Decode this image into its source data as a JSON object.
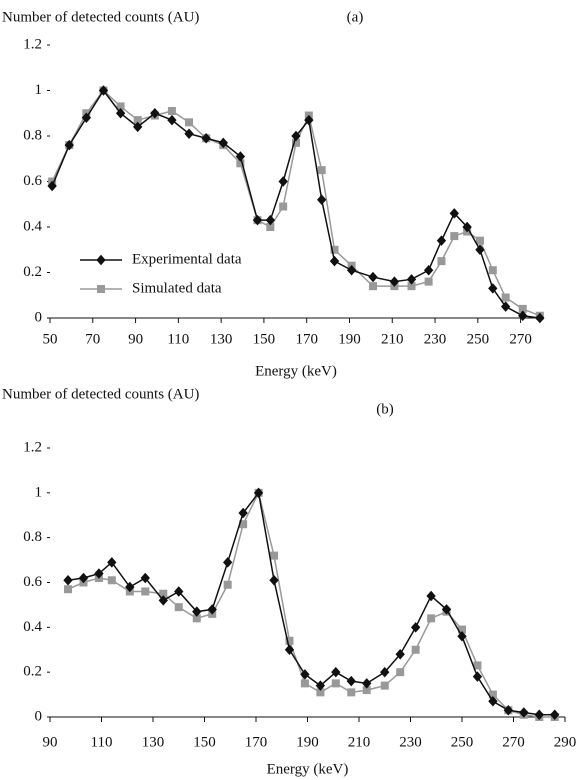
{
  "chart_data": [
    {
      "type": "line",
      "title": "(a)",
      "ylabel": "Number of detected counts (AU)",
      "xlabel": "Energy (keV)",
      "x": [
        51,
        59,
        67,
        75,
        83,
        91,
        99,
        107,
        115,
        123,
        131,
        139,
        147,
        153,
        159,
        165,
        171,
        177,
        183,
        191,
        201,
        211,
        219,
        227,
        233,
        239,
        245,
        251,
        257,
        263,
        271,
        279
      ],
      "series": [
        {
          "name": "Experimental data",
          "color": "#111111",
          "marker": "diamond",
          "values": [
            0.58,
            0.76,
            0.88,
            1.0,
            0.9,
            0.84,
            0.9,
            0.87,
            0.81,
            0.79,
            0.77,
            0.71,
            0.43,
            0.43,
            0.6,
            0.8,
            0.87,
            0.52,
            0.25,
            0.21,
            0.18,
            0.16,
            0.17,
            0.21,
            0.34,
            0.46,
            0.4,
            0.3,
            0.13,
            0.05,
            0.01,
            0.0
          ]
        },
        {
          "name": "Simulated data",
          "color": "#999999",
          "marker": "square",
          "values": [
            0.6,
            0.76,
            0.9,
            1.0,
            0.93,
            0.87,
            0.89,
            0.91,
            0.86,
            0.79,
            0.76,
            0.68,
            0.43,
            0.4,
            0.49,
            0.77,
            0.89,
            0.65,
            0.3,
            0.23,
            0.14,
            0.14,
            0.14,
            0.16,
            0.25,
            0.36,
            0.38,
            0.34,
            0.21,
            0.09,
            0.04,
            0.01
          ]
        }
      ],
      "xlim": [
        50,
        280
      ],
      "xticks": [
        50,
        70,
        90,
        110,
        130,
        150,
        170,
        190,
        210,
        230,
        250,
        270
      ],
      "ylim": [
        0,
        1.2
      ],
      "yticks": [
        0,
        0.2,
        0.4,
        0.6,
        0.8,
        1,
        1.2
      ],
      "legend": "lower left"
    },
    {
      "type": "line",
      "title": "(b)",
      "ylabel": "Number of detected counts (AU)",
      "xlabel": "Energy (keV)",
      "x": [
        97,
        103,
        109,
        114,
        121,
        127,
        134,
        140,
        147,
        153,
        159,
        165,
        171,
        177,
        183,
        189,
        195,
        201,
        207,
        213,
        220,
        226,
        232,
        238,
        244,
        250,
        256,
        262,
        268,
        274,
        280,
        286
      ],
      "series": [
        {
          "name": "Experimental data",
          "color": "#111111",
          "marker": "diamond",
          "values": [
            0.61,
            0.62,
            0.64,
            0.69,
            0.58,
            0.62,
            0.52,
            0.56,
            0.47,
            0.48,
            0.69,
            0.91,
            1.0,
            0.61,
            0.3,
            0.19,
            0.14,
            0.2,
            0.16,
            0.15,
            0.2,
            0.28,
            0.4,
            0.54,
            0.48,
            0.36,
            0.18,
            0.07,
            0.03,
            0.02,
            0.01,
            0.01
          ]
        },
        {
          "name": "Simulated data",
          "color": "#999999",
          "marker": "square",
          "values": [
            0.57,
            0.6,
            0.62,
            0.61,
            0.56,
            0.56,
            0.55,
            0.49,
            0.44,
            0.46,
            0.59,
            0.86,
            1.0,
            0.72,
            0.34,
            0.15,
            0.11,
            0.15,
            0.11,
            0.12,
            0.14,
            0.2,
            0.3,
            0.44,
            0.47,
            0.39,
            0.23,
            0.1,
            0.03,
            0.01,
            0.0,
            0.0
          ]
        }
      ],
      "xlim": [
        90,
        290
      ],
      "xticks": [
        90,
        110,
        130,
        150,
        170,
        190,
        210,
        230,
        250,
        270,
        290
      ],
      "ylim": [
        0,
        1.2
      ],
      "yticks": [
        0,
        0.2,
        0.4,
        0.6,
        0.8,
        1,
        1.2
      ],
      "legend": false
    }
  ]
}
